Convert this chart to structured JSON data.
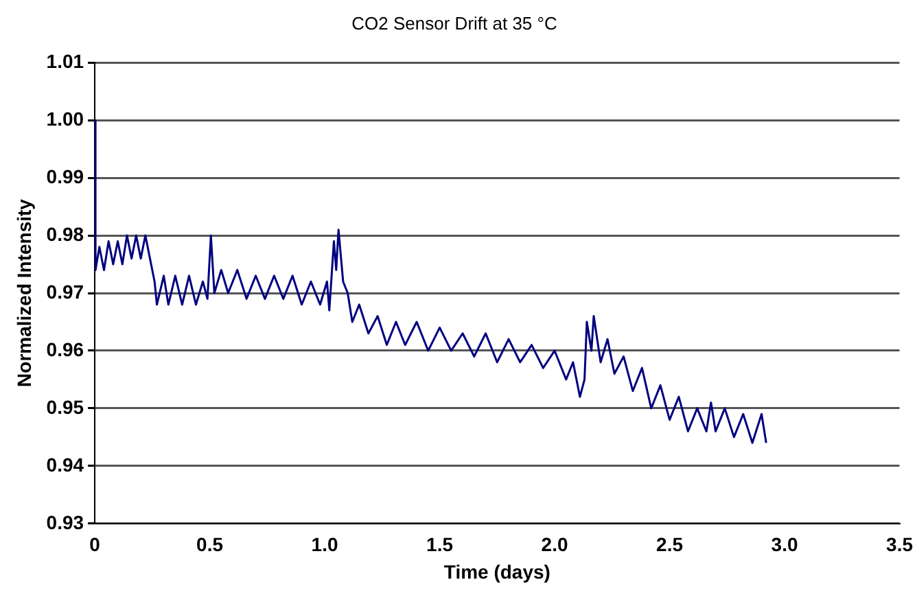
{
  "chart_data": {
    "type": "line",
    "title": "CO2 Sensor Drift at 35 °C",
    "xlabel": "Time (days)",
    "ylabel": "Normalized Intensity",
    "xlim": [
      0,
      3.5
    ],
    "xticks": [
      0,
      {
        "value": 0.5,
        "label": "0.5"
      },
      {
        "value": 1,
        "label": "1.0"
      },
      {
        "value": 1.5,
        "label": "1.5"
      },
      {
        "value": 2,
        "label": "2.0"
      },
      {
        "value": 2.5,
        "label": "2.5"
      },
      {
        "value": 3,
        "label": "3.0"
      },
      {
        "value": 3.5,
        "label": "3.5"
      }
    ],
    "ylim": [
      0.93,
      1.01
    ],
    "yticks": [
      0.93,
      0.94,
      0.95,
      0.96,
      0.97,
      0.98,
      0.99,
      {
        "value": 1,
        "label": "1.00"
      },
      1.01
    ],
    "grid": "y",
    "legend": false,
    "marker": "none",
    "line_style": "solid",
    "series": [
      {
        "color": "#000080",
        "x": [
          0,
          0.003,
          0.02,
          0.04,
          0.06,
          0.08,
          0.1,
          0.12,
          0.14,
          0.16,
          0.18,
          0.2,
          0.22,
          0.24,
          0.26,
          0.27,
          0.3,
          0.32,
          0.35,
          0.38,
          0.41,
          0.44,
          0.47,
          0.49,
          0.505,
          0.52,
          0.55,
          0.58,
          0.62,
          0.66,
          0.7,
          0.74,
          0.78,
          0.82,
          0.86,
          0.9,
          0.94,
          0.98,
          1.01,
          1.02,
          1.04,
          1.05,
          1.06,
          1.08,
          1.1,
          1.12,
          1.15,
          1.19,
          1.23,
          1.27,
          1.31,
          1.35,
          1.4,
          1.45,
          1.5,
          1.55,
          1.6,
          1.65,
          1.7,
          1.75,
          1.8,
          1.85,
          1.9,
          1.95,
          2.0,
          2.05,
          2.08,
          2.11,
          2.13,
          2.14,
          2.16,
          2.17,
          2.2,
          2.23,
          2.26,
          2.3,
          2.34,
          2.38,
          2.42,
          2.46,
          2.5,
          2.54,
          2.58,
          2.62,
          2.66,
          2.68,
          2.7,
          2.74,
          2.78,
          2.82,
          2.86,
          2.9,
          2.92
        ],
        "values": [
          1.0,
          0.974,
          0.978,
          0.974,
          0.979,
          0.975,
          0.979,
          0.975,
          0.98,
          0.976,
          0.98,
          0.976,
          0.98,
          0.976,
          0.972,
          0.968,
          0.973,
          0.968,
          0.973,
          0.968,
          0.973,
          0.968,
          0.972,
          0.969,
          0.98,
          0.97,
          0.974,
          0.97,
          0.974,
          0.969,
          0.973,
          0.969,
          0.973,
          0.969,
          0.973,
          0.968,
          0.972,
          0.968,
          0.972,
          0.967,
          0.979,
          0.974,
          0.981,
          0.972,
          0.97,
          0.965,
          0.968,
          0.963,
          0.966,
          0.961,
          0.965,
          0.961,
          0.965,
          0.96,
          0.964,
          0.96,
          0.963,
          0.959,
          0.963,
          0.958,
          0.962,
          0.958,
          0.961,
          0.957,
          0.96,
          0.955,
          0.958,
          0.952,
          0.955,
          0.965,
          0.96,
          0.966,
          0.958,
          0.962,
          0.956,
          0.959,
          0.953,
          0.957,
          0.95,
          0.954,
          0.948,
          0.952,
          0.946,
          0.95,
          0.946,
          0.951,
          0.946,
          0.95,
          0.945,
          0.949,
          0.944,
          0.949,
          0.944
        ]
      }
    ]
  }
}
